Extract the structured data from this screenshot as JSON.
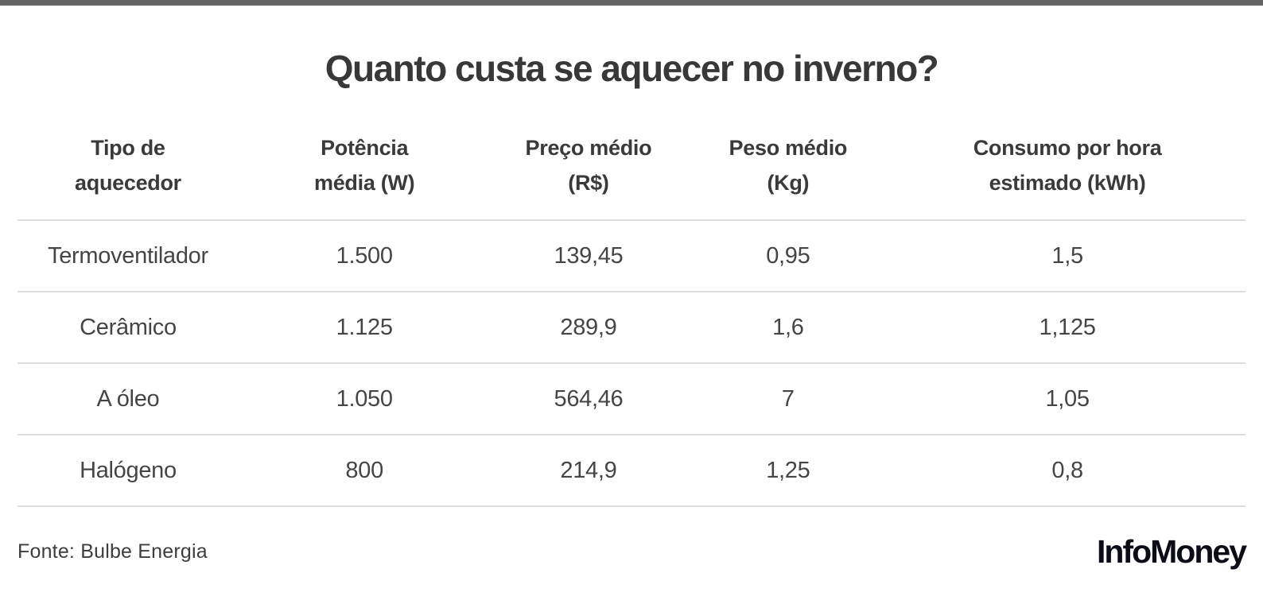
{
  "chart_data": {
    "type": "table",
    "title": "Quanto custa se aquecer no inverno?",
    "columns": [
      "Tipo de\naquecedor",
      "Potência\nmédia (W)",
      "Preço médio\n(R$)",
      "Peso médio\n(Kg)",
      "Consumo por hora\nestimado (kWh)"
    ],
    "rows": [
      [
        "Termoventilador",
        "1.500",
        "139,45",
        "0,95",
        "1,5"
      ],
      [
        "Cerâmico",
        "1.125",
        "289,9",
        "1,6",
        "1,125"
      ],
      [
        "A óleo",
        "1.050",
        "564,46",
        "7",
        "1,05"
      ],
      [
        "Halógeno",
        "800",
        "214,9",
        "1,25",
        "0,8"
      ]
    ],
    "source": "Fonte: Bulbe Energia",
    "grid": "horizontal-dividers-only",
    "legend_position": "none"
  },
  "footer": {
    "source": "Fonte: Bulbe Energia",
    "brand": "InfoMoney"
  },
  "colors": {
    "top_bar": "#646464",
    "title_text": "#383838",
    "header_text": "#3a3a3a",
    "cell_text": "#454545",
    "divider": "#dcdcdc",
    "brand_text": "#0c0c18",
    "background": "#ffffff"
  }
}
